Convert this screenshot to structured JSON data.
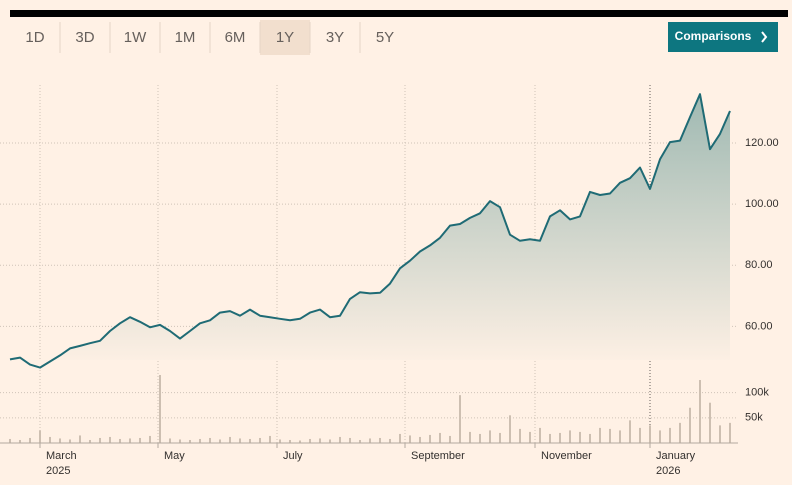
{
  "toolbar": {
    "ranges": [
      "1D",
      "3D",
      "1W",
      "1M",
      "6M",
      "1Y",
      "3Y",
      "5Y"
    ],
    "selected": 5,
    "comparisons": "Comparisons"
  },
  "chart_data": [
    {
      "type": "line",
      "color": "#1f6b75",
      "values": [
        49.2,
        49.8,
        47.5,
        46.5,
        48.5,
        50.5,
        52.8,
        53.6,
        54.5,
        55.3,
        58.5,
        61,
        63,
        61.5,
        59.7,
        60.5,
        58.5,
        56,
        58.5,
        61,
        62,
        64.5,
        65,
        63.5,
        65.5,
        63.5,
        63,
        62.5,
        62,
        62.5,
        64.5,
        65.5,
        63,
        63.5,
        69,
        71.2,
        70.8,
        71,
        74,
        79,
        81.5,
        84.5,
        86.5,
        89,
        93,
        93.5,
        95.5,
        97,
        101,
        99,
        90,
        88,
        88.5,
        88,
        96,
        98,
        95,
        96,
        104,
        103,
        103.5,
        107,
        108.5,
        112,
        105,
        114.7,
        120.3,
        120.8,
        128.5,
        136,
        118,
        123,
        130.5
      ],
      "xlim": [
        0,
        72
      ],
      "ylim": [
        49,
        139
      ],
      "yticks": [
        {
          "value": 60,
          "label": "60.00"
        },
        {
          "value": 80,
          "label": "80.00"
        },
        {
          "value": 100,
          "label": "100.00"
        },
        {
          "value": 120,
          "label": "120.00"
        }
      ],
      "xticks": [
        {
          "value": 3,
          "label": "March",
          "sublabel": "2025"
        },
        {
          "value": 14.8,
          "label": "May"
        },
        {
          "value": 26.7,
          "label": "July"
        },
        {
          "value": 39.5,
          "label": "September"
        },
        {
          "value": 52.5,
          "label": "November"
        },
        {
          "value": 64,
          "label": "January",
          "sublabel": "2026"
        }
      ],
      "grid": true
    },
    {
      "type": "bar",
      "color": "#cdbfb1",
      "values": [
        8000,
        6000,
        10000,
        25000,
        12000,
        9000,
        7000,
        15000,
        6000,
        10000,
        12000,
        8000,
        9000,
        10000,
        14000,
        135000,
        9000,
        7000,
        6000,
        8000,
        10000,
        7000,
        12000,
        9000,
        8000,
        10000,
        14000,
        7000,
        6000,
        5000,
        8000,
        9000,
        7000,
        12000,
        10000,
        6000,
        9000,
        10000,
        8000,
        18000,
        15000,
        12000,
        16000,
        20000,
        14000,
        95000,
        22000,
        18000,
        25000,
        20000,
        55000,
        28000,
        22000,
        30000,
        18000,
        20000,
        25000,
        22000,
        18000,
        30000,
        28000,
        25000,
        45000,
        30000,
        35000,
        25000,
        30000,
        40000,
        70000,
        125000,
        80000,
        35000,
        40000
      ],
      "xlim": [
        0,
        72
      ],
      "ylim": [
        0,
        135000
      ],
      "yticks": [
        {
          "value": 50000,
          "label": "50k"
        },
        {
          "value": 100000,
          "label": "100k"
        }
      ]
    }
  ]
}
